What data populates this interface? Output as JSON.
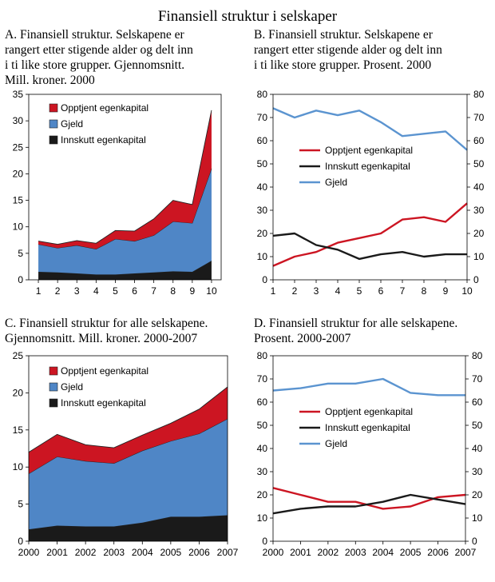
{
  "title": "Finansiell struktur i selskaper",
  "colors": {
    "opptjent": "#cc1522",
    "gjeld": "#4f86c6",
    "innskutt": "#1a1a1a",
    "gjeld_line": "#5b94d0",
    "outline": "#222222"
  },
  "panels": [
    {
      "id": "A",
      "title_lines": [
        "A. Finansiell struktur. Selskapene er",
        "rangert etter stigende alder og delt inn",
        "i ti like store grupper. Gjennomsnitt.",
        "Mill. kroner. 2000"
      ],
      "legend": [
        "Opptjent egenkapital",
        "Gjeld",
        "Innskutt egenkapital"
      ]
    },
    {
      "id": "B",
      "title_lines": [
        "B. Finansiell struktur. Selskapene er",
        "rangert etter stigende alder og delt inn",
        "i ti like store grupper. Prosent. 2000"
      ],
      "legend": [
        "Opptjent egenkapital",
        "Innskutt egenkapital",
        "Gjeld"
      ]
    },
    {
      "id": "C",
      "title_lines": [
        "C. Finansiell struktur for alle selskapene.",
        "Gjennomsnitt. Mill. kroner. 2000-2007"
      ],
      "legend": [
        "Opptjent egenkapital",
        "Gjeld",
        "Innskutt egenkapital"
      ]
    },
    {
      "id": "D",
      "title_lines": [
        "D. Finansiell struktur for alle selskapene.",
        "Prosent. 2000-2007"
      ],
      "legend": [
        "Opptjent egenkapital",
        "Innskutt egenkapital",
        "Gjeld"
      ]
    }
  ],
  "chart_data": [
    {
      "id": "A",
      "type": "area",
      "stacked": true,
      "categories": [
        "1",
        "2",
        "3",
        "4",
        "5",
        "6",
        "7",
        "8",
        "9",
        "10"
      ],
      "ylim": [
        0,
        35
      ],
      "yticks": [
        "0",
        "5",
        "10",
        "15",
        "20",
        "25",
        "30",
        "35"
      ],
      "series": [
        {
          "name": "Innskutt egenkapital",
          "values": [
            1.5,
            1.4,
            1.2,
            1.0,
            1.0,
            1.2,
            1.4,
            1.6,
            1.5,
            3.6
          ]
        },
        {
          "name": "Gjeld",
          "values": [
            5.2,
            4.6,
            5.3,
            4.8,
            6.7,
            6.1,
            7.0,
            9.4,
            9.2,
            17.4
          ]
        },
        {
          "name": "Opptjent egenkapital",
          "values": [
            0.6,
            0.7,
            0.9,
            1.1,
            1.6,
            1.9,
            3.1,
            4.0,
            3.5,
            11.0
          ]
        }
      ]
    },
    {
      "id": "B",
      "type": "line",
      "categories": [
        "1",
        "2",
        "3",
        "4",
        "5",
        "6",
        "7",
        "8",
        "9",
        "10"
      ],
      "ylim": [
        0,
        80
      ],
      "yticks": [
        "0",
        "10",
        "20",
        "30",
        "40",
        "50",
        "60",
        "70",
        "80"
      ],
      "y2ticks": [
        "0",
        "10",
        "20",
        "30",
        "40",
        "50",
        "60",
        "70",
        "80"
      ],
      "series": [
        {
          "name": "Opptjent egenkapital",
          "values": [
            6,
            10,
            12,
            16,
            18,
            20,
            26,
            27,
            25,
            33
          ]
        },
        {
          "name": "Innskutt egenkapital",
          "values": [
            19,
            20,
            15,
            13,
            9,
            11,
            12,
            10,
            11,
            11
          ]
        },
        {
          "name": "Gjeld",
          "values": [
            74,
            70,
            73,
            71,
            73,
            68,
            62,
            63,
            64,
            56
          ]
        }
      ]
    },
    {
      "id": "C",
      "type": "area",
      "stacked": true,
      "categories": [
        "2000",
        "2001",
        "2002",
        "2003",
        "2004",
        "2005",
        "2006",
        "2007"
      ],
      "ylim": [
        0,
        25
      ],
      "yticks": [
        "0",
        "5",
        "10",
        "15",
        "20",
        "25"
      ],
      "series": [
        {
          "name": "Innskutt egenkapital",
          "values": [
            1.6,
            2.1,
            2.0,
            2.0,
            2.5,
            3.3,
            3.3,
            3.5
          ]
        },
        {
          "name": "Gjeld",
          "values": [
            7.5,
            9.3,
            8.8,
            8.5,
            9.7,
            10.2,
            11.2,
            13.0
          ]
        },
        {
          "name": "Opptjent egenkapital",
          "values": [
            2.9,
            3.0,
            2.2,
            2.1,
            2.1,
            2.4,
            3.3,
            4.3
          ]
        }
      ]
    },
    {
      "id": "D",
      "type": "line",
      "categories": [
        "2000",
        "2001",
        "2002",
        "2003",
        "2004",
        "2005",
        "2006",
        "2007"
      ],
      "ylim": [
        0,
        80
      ],
      "yticks": [
        "0",
        "10",
        "20",
        "30",
        "40",
        "50",
        "60",
        "70",
        "80"
      ],
      "y2ticks": [
        "0",
        "10",
        "20",
        "30",
        "40",
        "50",
        "60",
        "70",
        "80"
      ],
      "series": [
        {
          "name": "Opptjent egenkapital",
          "values": [
            23,
            20,
            17,
            17,
            14,
            15,
            19,
            20
          ]
        },
        {
          "name": "Innskutt egenkapital",
          "values": [
            12,
            14,
            15,
            15,
            17,
            20,
            18,
            16
          ]
        },
        {
          "name": "Gjeld",
          "values": [
            65,
            66,
            68,
            68,
            70,
            64,
            63,
            63
          ]
        }
      ]
    }
  ]
}
